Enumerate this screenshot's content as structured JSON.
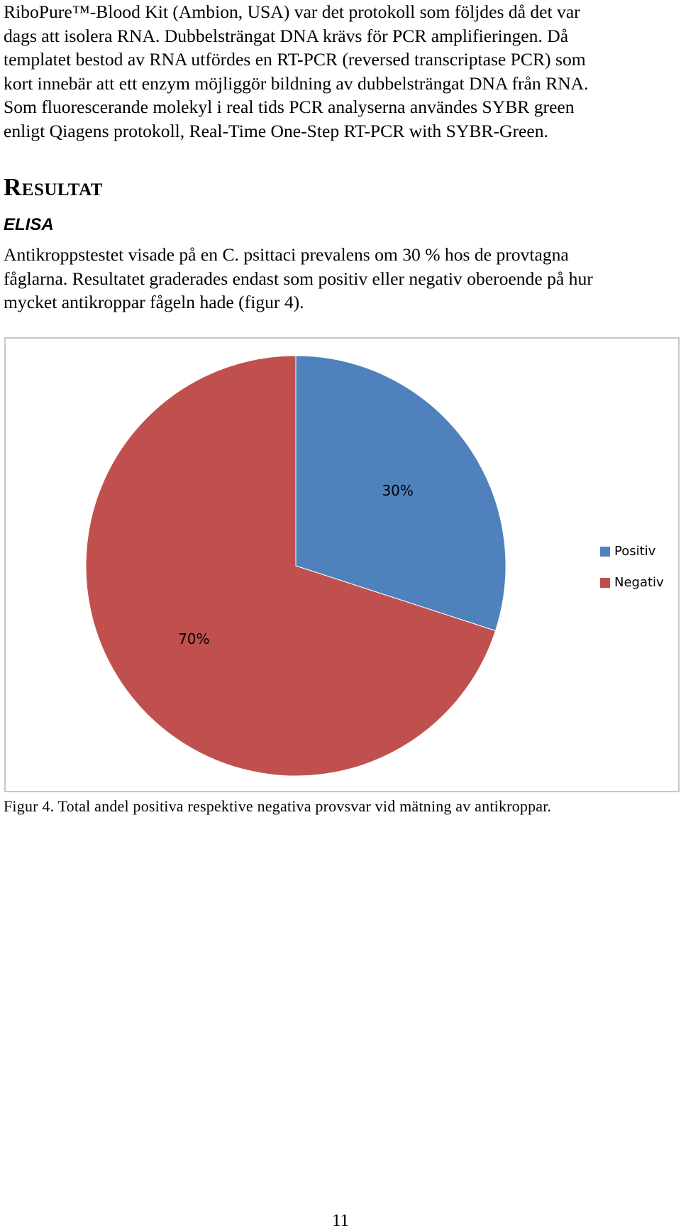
{
  "intro_paragraph": [
    "RiboPure™-Blood Kit (Ambion, USA) var det protokoll som följdes då det var",
    "dags att isolera RNA. Dubbelsträngat DNA krävs för PCR amplifieringen. Då",
    "templatet bestod av RNA utfördes en RT-PCR (reversed transcriptase PCR) som",
    "kort innebär att ett enzym möjliggör bildning av dubbelsträngat DNA från RNA.",
    "Som fluorescerande molekyl i real tids PCR analyserna användes SYBR green",
    "enligt Qiagens protokoll, Real-Time One-Step RT-PCR with SYBR-Green."
  ],
  "section_heading": "Resultat",
  "subsection_heading": "ELISA",
  "result_paragraph": [
    "Antikroppstestet visade på en C. psittaci prevalens om 30 % hos de provtagna",
    "fåglarna. Resultatet graderades endast som positiv eller negativ oberoende på hur",
    "mycket antikroppar fågeln hade (figur 4)."
  ],
  "chart_data": {
    "type": "pie",
    "categories": [
      "Positiv",
      "Negativ"
    ],
    "values": [
      30,
      70
    ],
    "data_labels": [
      "30%",
      "70%"
    ],
    "colors": [
      "#4f81bd",
      "#c0504d"
    ],
    "start_angle": "12 o'clock, clockwise",
    "legend_position": "right",
    "title": ""
  },
  "figure_caption": "Figur 4. Total andel positiva respektive negativa provsvar vid mätning av antikroppar.",
  "page_number": "11"
}
